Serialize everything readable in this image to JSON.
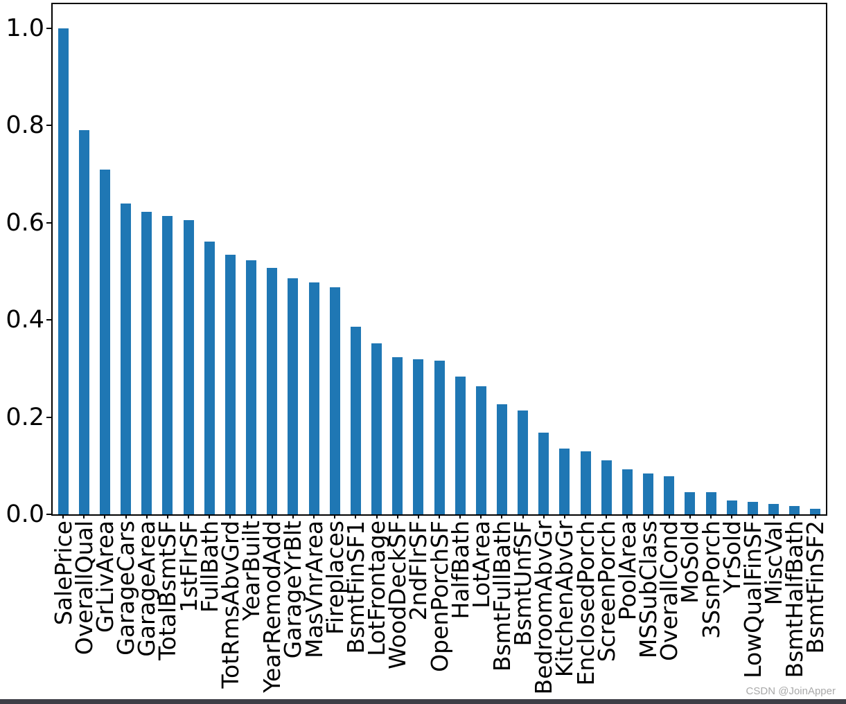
{
  "watermark": "CSDN @JoinApper",
  "colors": {
    "bar": "#1f77b4",
    "axis": "#000000",
    "background": "#ffffff",
    "watermark_text": "#a9a9a9",
    "bottom_strip": "#3e3e46"
  },
  "chart_data": {
    "type": "bar",
    "title": "",
    "xlabel": "",
    "ylabel": "",
    "grid": false,
    "legend": false,
    "x_tick_rotation": 90,
    "ylim": [
      0,
      1.05
    ],
    "ytick_labels": [
      "0.0",
      "0.2",
      "0.4",
      "0.6",
      "0.8",
      "1.0"
    ],
    "categories": [
      "SalePrice",
      "OverallQual",
      "GrLivArea",
      "GarageCars",
      "GarageArea",
      "TotalBsmtSF",
      "1stFlrSF",
      "FullBath",
      "TotRmsAbvGrd",
      "YearBuilt",
      "YearRemodAdd",
      "GarageYrBlt",
      "MasVnrArea",
      "Fireplaces",
      "BsmtFinSF1",
      "LotFrontage",
      "WoodDeckSF",
      "2ndFlrSF",
      "OpenPorchSF",
      "HalfBath",
      "LotArea",
      "BsmtFullBath",
      "BsmtUnfSF",
      "BedroomAbvGr",
      "KitchenAbvGr",
      "EnclosedPorch",
      "ScreenPorch",
      "PoolArea",
      "MSSubClass",
      "OverallCond",
      "MoSold",
      "3SsnPorch",
      "YrSold",
      "LowQualFinSF",
      "MiscVal",
      "BsmtHalfBath",
      "BsmtFinSF2"
    ],
    "values": [
      1.0,
      0.791,
      0.709,
      0.64,
      0.623,
      0.614,
      0.606,
      0.561,
      0.534,
      0.523,
      0.507,
      0.486,
      0.477,
      0.467,
      0.386,
      0.352,
      0.324,
      0.319,
      0.316,
      0.284,
      0.264,
      0.227,
      0.214,
      0.168,
      0.136,
      0.129,
      0.111,
      0.092,
      0.084,
      0.078,
      0.046,
      0.045,
      0.029,
      0.026,
      0.021,
      0.017,
      0.011
    ]
  }
}
